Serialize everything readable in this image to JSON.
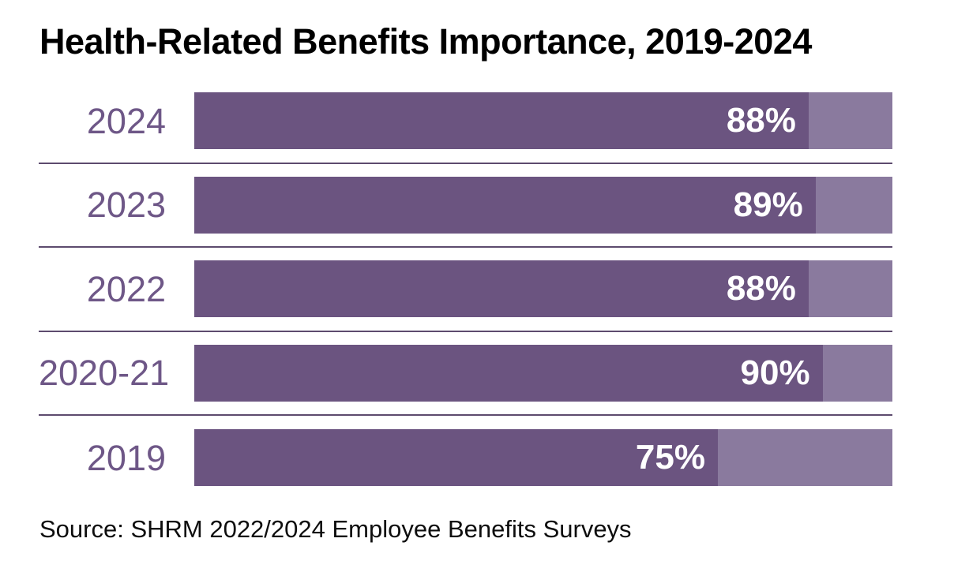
{
  "title": "Health-Related Benefits Importance, 2019-2024",
  "source": "Source: SHRM 2022/2024 Employee Benefits Surveys",
  "chart_data": {
    "type": "bar",
    "orientation": "horizontal",
    "title": "Health-Related Benefits Importance, 2019-2024",
    "source": "Source: SHRM 2022/2024 Employee Benefits Surveys",
    "categories": [
      "2024",
      "2023",
      "2022",
      "2020-21",
      "2019"
    ],
    "values": [
      88,
      89,
      88,
      90,
      75
    ],
    "value_labels": [
      "88%",
      "89%",
      "88%",
      "90%",
      "75%"
    ],
    "xlabel": "",
    "ylabel": "",
    "xlim": [
      0,
      100
    ],
    "grid": false,
    "legend": "none",
    "colors": {
      "bar_fill": "#6B5480",
      "bar_track": "#8A7A9E",
      "year_text": "#6E5787",
      "separator": "#5D4B6E",
      "value_text": "#FFFFFF",
      "title_text": "#000000"
    }
  }
}
